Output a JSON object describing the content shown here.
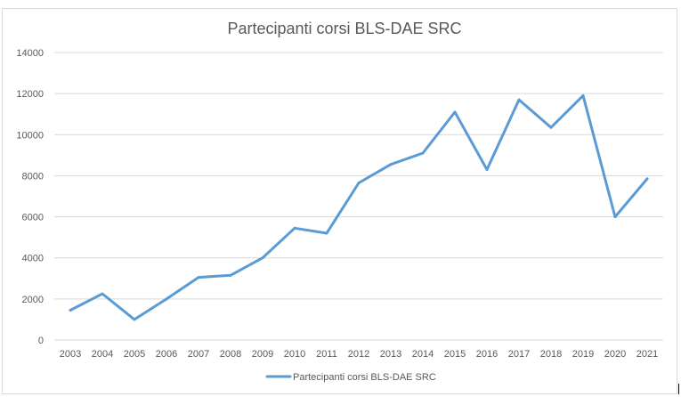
{
  "chart_data": {
    "type": "line",
    "title": "Partecipanti corsi BLS-DAE SRC",
    "xlabel": "",
    "ylabel": "",
    "categories": [
      "2003",
      "2004",
      "2005",
      "2006",
      "2007",
      "2008",
      "2009",
      "2010",
      "2011",
      "2012",
      "2013",
      "2014",
      "2015",
      "2016",
      "2017",
      "2018",
      "2019",
      "2020",
      "2021"
    ],
    "series": [
      {
        "name": "Partecipanti corsi BLS-DAE SRC",
        "values": [
          1450,
          2250,
          1000,
          2000,
          3050,
          3150,
          4000,
          5450,
          5200,
          7650,
          8550,
          9100,
          11100,
          8300,
          11700,
          10350,
          11900,
          6000,
          7850
        ],
        "color": "#5b9bd5"
      }
    ],
    "ylim": [
      0,
      14000
    ],
    "yticks": [
      "0",
      "2000",
      "4000",
      "6000",
      "8000",
      "10000",
      "12000",
      "14000"
    ],
    "grid": true,
    "legend": "bottom"
  }
}
